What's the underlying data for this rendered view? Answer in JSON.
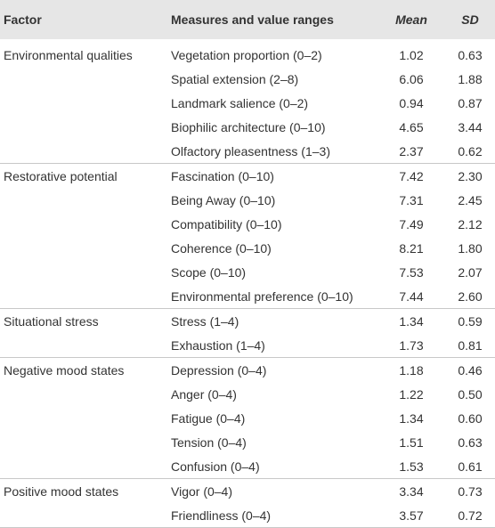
{
  "table": {
    "header": [
      "Factor",
      "Measures and value ranges",
      "Mean",
      "SD"
    ],
    "groups": [
      {
        "factor": "Environmental qualities",
        "rows": [
          [
            "Vegetation proportion (0–2)",
            "1.02",
            "0.63"
          ],
          [
            "Spatial extension (2–8)",
            "6.06",
            "1.88"
          ],
          [
            "Landmark salience (0–2)",
            "0.94",
            "0.87"
          ],
          [
            "Biophilic architecture (0–10)",
            "4.65",
            "3.44"
          ],
          [
            "Olfactory pleasentness (1–3)",
            "2.37",
            "0.62"
          ]
        ]
      },
      {
        "factor": "Restorative potential",
        "rows": [
          [
            "Fascination (0–10)",
            "7.42",
            "2.30"
          ],
          [
            "Being Away (0–10)",
            "7.31",
            "2.45"
          ],
          [
            "Compatibility (0–10)",
            "7.49",
            "2.12"
          ],
          [
            "Coherence (0–10)",
            "8.21",
            "1.80"
          ],
          [
            "Scope (0–10)",
            "7.53",
            "2.07"
          ],
          [
            "Environmental preference (0–10)",
            "7.44",
            "2.60"
          ]
        ]
      },
      {
        "factor": "Situational stress",
        "rows": [
          [
            "Stress (1–4)",
            "1.34",
            "0.59"
          ],
          [
            "Exhaustion (1–4)",
            "1.73",
            "0.81"
          ]
        ]
      },
      {
        "factor": "Negative mood states",
        "rows": [
          [
            "Depression (0–4)",
            "1.18",
            "0.46"
          ],
          [
            "Anger (0–4)",
            "1.22",
            "0.50"
          ],
          [
            "Fatigue (0–4)",
            "1.34",
            "0.60"
          ],
          [
            "Tension (0–4)",
            "1.51",
            "0.63"
          ],
          [
            "Confusion (0–4)",
            "1.53",
            "0.61"
          ]
        ]
      },
      {
        "factor": "Positive mood states",
        "rows": [
          [
            "Vigor (0–4)",
            "3.34",
            "0.73"
          ],
          [
            "Friendliness (0–4)",
            "3.57",
            "0.72"
          ]
        ]
      }
    ]
  }
}
